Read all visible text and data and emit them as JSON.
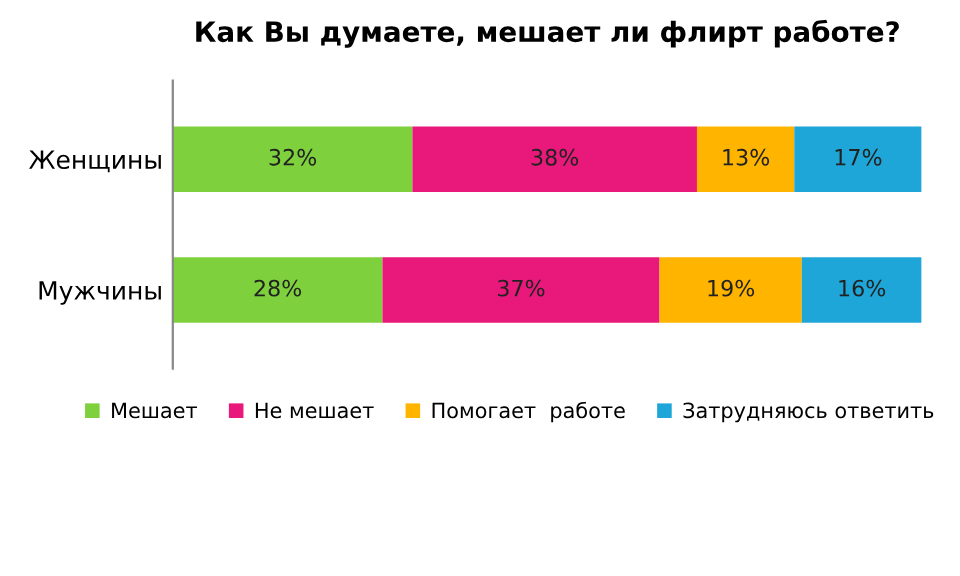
{
  "chart_data": {
    "type": "bar",
    "orientation": "horizontal",
    "stacked": true,
    "title": "Как Вы думаете, мешает ли флирт работе?",
    "categories": [
      "Женщины",
      "Мужчины"
    ],
    "series": [
      {
        "name": "Мешает",
        "color": "#7ed13c",
        "values": [
          32,
          28
        ],
        "value_labels": [
          "32%",
          "28%"
        ]
      },
      {
        "name": "Не мешает",
        "color": "#e8197a",
        "values": [
          38,
          37
        ],
        "value_labels": [
          "38%",
          "37%"
        ]
      },
      {
        "name": "Помогает  работе",
        "color": "#ffb400",
        "values": [
          13,
          19
        ],
        "value_labels": [
          "13%",
          "19%"
        ]
      },
      {
        "name": "Затрудняюсь ответить",
        "color": "#1ea6d8",
        "values": [
          17,
          16
        ],
        "value_labels": [
          "17%",
          "16%"
        ]
      }
    ],
    "xlim": [
      0,
      100
    ],
    "tick_labels": "y",
    "legend": "bottom",
    "grid": false
  }
}
